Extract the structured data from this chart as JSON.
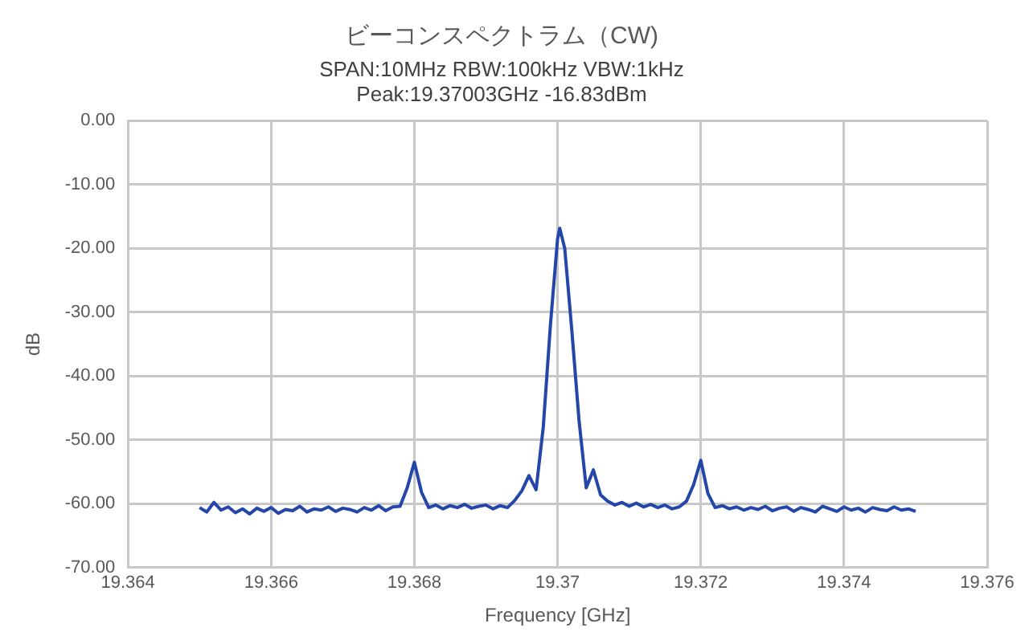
{
  "chart_data": {
    "type": "line",
    "title": "ビーコンスペクトラム（CW)",
    "subtitle": "SPAN:10MHz RBW:100kHz VBW:1kHz\nPeak:19.37003GHz -16.83dBm",
    "xlabel": "Frequency [GHz]",
    "ylabel": "dB",
    "x": [
      19.365,
      19.3651,
      19.3652,
      19.3653,
      19.3654,
      19.3655,
      19.3656,
      19.3657,
      19.3658,
      19.3659,
      19.366,
      19.3661,
      19.3662,
      19.3663,
      19.3664,
      19.3665,
      19.3666,
      19.3667,
      19.3668,
      19.3669,
      19.367,
      19.3671,
      19.3672,
      19.3673,
      19.3674,
      19.3675,
      19.3676,
      19.3677,
      19.3678,
      19.3679,
      19.368,
      19.3681,
      19.3682,
      19.3683,
      19.3684,
      19.3685,
      19.3686,
      19.3687,
      19.3688,
      19.3689,
      19.369,
      19.3691,
      19.3692,
      19.3693,
      19.3694,
      19.3695,
      19.3696,
      19.3697,
      19.3698,
      19.3699,
      19.37,
      19.37003,
      19.3701,
      19.3702,
      19.3703,
      19.3704,
      19.3705,
      19.3706,
      19.3707,
      19.3708,
      19.3709,
      19.371,
      19.3711,
      19.3712,
      19.3713,
      19.3714,
      19.3715,
      19.3716,
      19.3717,
      19.3718,
      19.3719,
      19.372,
      19.3721,
      19.3722,
      19.3723,
      19.3724,
      19.3725,
      19.3726,
      19.3727,
      19.3728,
      19.3729,
      19.373,
      19.3731,
      19.3732,
      19.3733,
      19.3734,
      19.3735,
      19.3736,
      19.3737,
      19.3738,
      19.3739,
      19.374,
      19.3741,
      19.3742,
      19.3743,
      19.3744,
      19.3745,
      19.3746,
      19.3747,
      19.3748,
      19.3749,
      19.375
    ],
    "series": [
      {
        "color": "#2346a8",
        "values": [
          -60.6,
          -61.3,
          -59.8,
          -61.0,
          -60.5,
          -61.4,
          -60.8,
          -61.6,
          -60.7,
          -61.2,
          -60.6,
          -61.5,
          -60.9,
          -61.1,
          -60.4,
          -61.3,
          -60.8,
          -61.0,
          -60.5,
          -61.2,
          -60.7,
          -60.9,
          -61.3,
          -60.6,
          -61.0,
          -60.3,
          -61.1,
          -60.5,
          -60.4,
          -57.5,
          -53.5,
          -58.2,
          -60.6,
          -60.2,
          -60.8,
          -60.3,
          -60.6,
          -60.1,
          -60.7,
          -60.4,
          -60.2,
          -60.8,
          -60.3,
          -60.6,
          -59.5,
          -58.0,
          -55.6,
          -57.8,
          -48.0,
          -32.0,
          -18.5,
          -16.83,
          -20.0,
          -33.0,
          -47.0,
          -57.5,
          -54.7,
          -58.6,
          -59.6,
          -60.2,
          -59.8,
          -60.4,
          -59.9,
          -60.5,
          -60.1,
          -60.6,
          -60.2,
          -60.8,
          -60.5,
          -59.6,
          -57.0,
          -53.2,
          -58.4,
          -60.6,
          -60.3,
          -60.8,
          -60.5,
          -61.0,
          -60.6,
          -60.9,
          -60.4,
          -61.1,
          -60.7,
          -60.5,
          -61.2,
          -60.6,
          -60.9,
          -61.3,
          -60.4,
          -60.8,
          -61.2,
          -60.5,
          -61.0,
          -60.7,
          -61.3,
          -60.6,
          -60.9,
          -61.1,
          -60.5,
          -61.0,
          -60.8,
          -61.2
        ]
      }
    ],
    "xlim": [
      19.364,
      19.376
    ],
    "xticks": [
      19.364,
      19.366,
      19.368,
      19.37,
      19.372,
      19.374,
      19.376
    ],
    "ylim": [
      -70,
      0
    ],
    "yticks": [
      {
        "value": 0,
        "label": "0.00"
      },
      {
        "value": -10,
        "label": "-10.00"
      },
      {
        "value": -20,
        "label": "-20.00"
      },
      {
        "value": -30,
        "label": "-30.00"
      },
      {
        "value": -40,
        "label": "-40.00"
      },
      {
        "value": -50,
        "label": "-50.00"
      },
      {
        "value": -60,
        "label": "-60.00"
      },
      {
        "value": -70,
        "label": "-70.00"
      }
    ],
    "grid": true,
    "legend": false,
    "marker": "none",
    "line_style": "solid"
  }
}
